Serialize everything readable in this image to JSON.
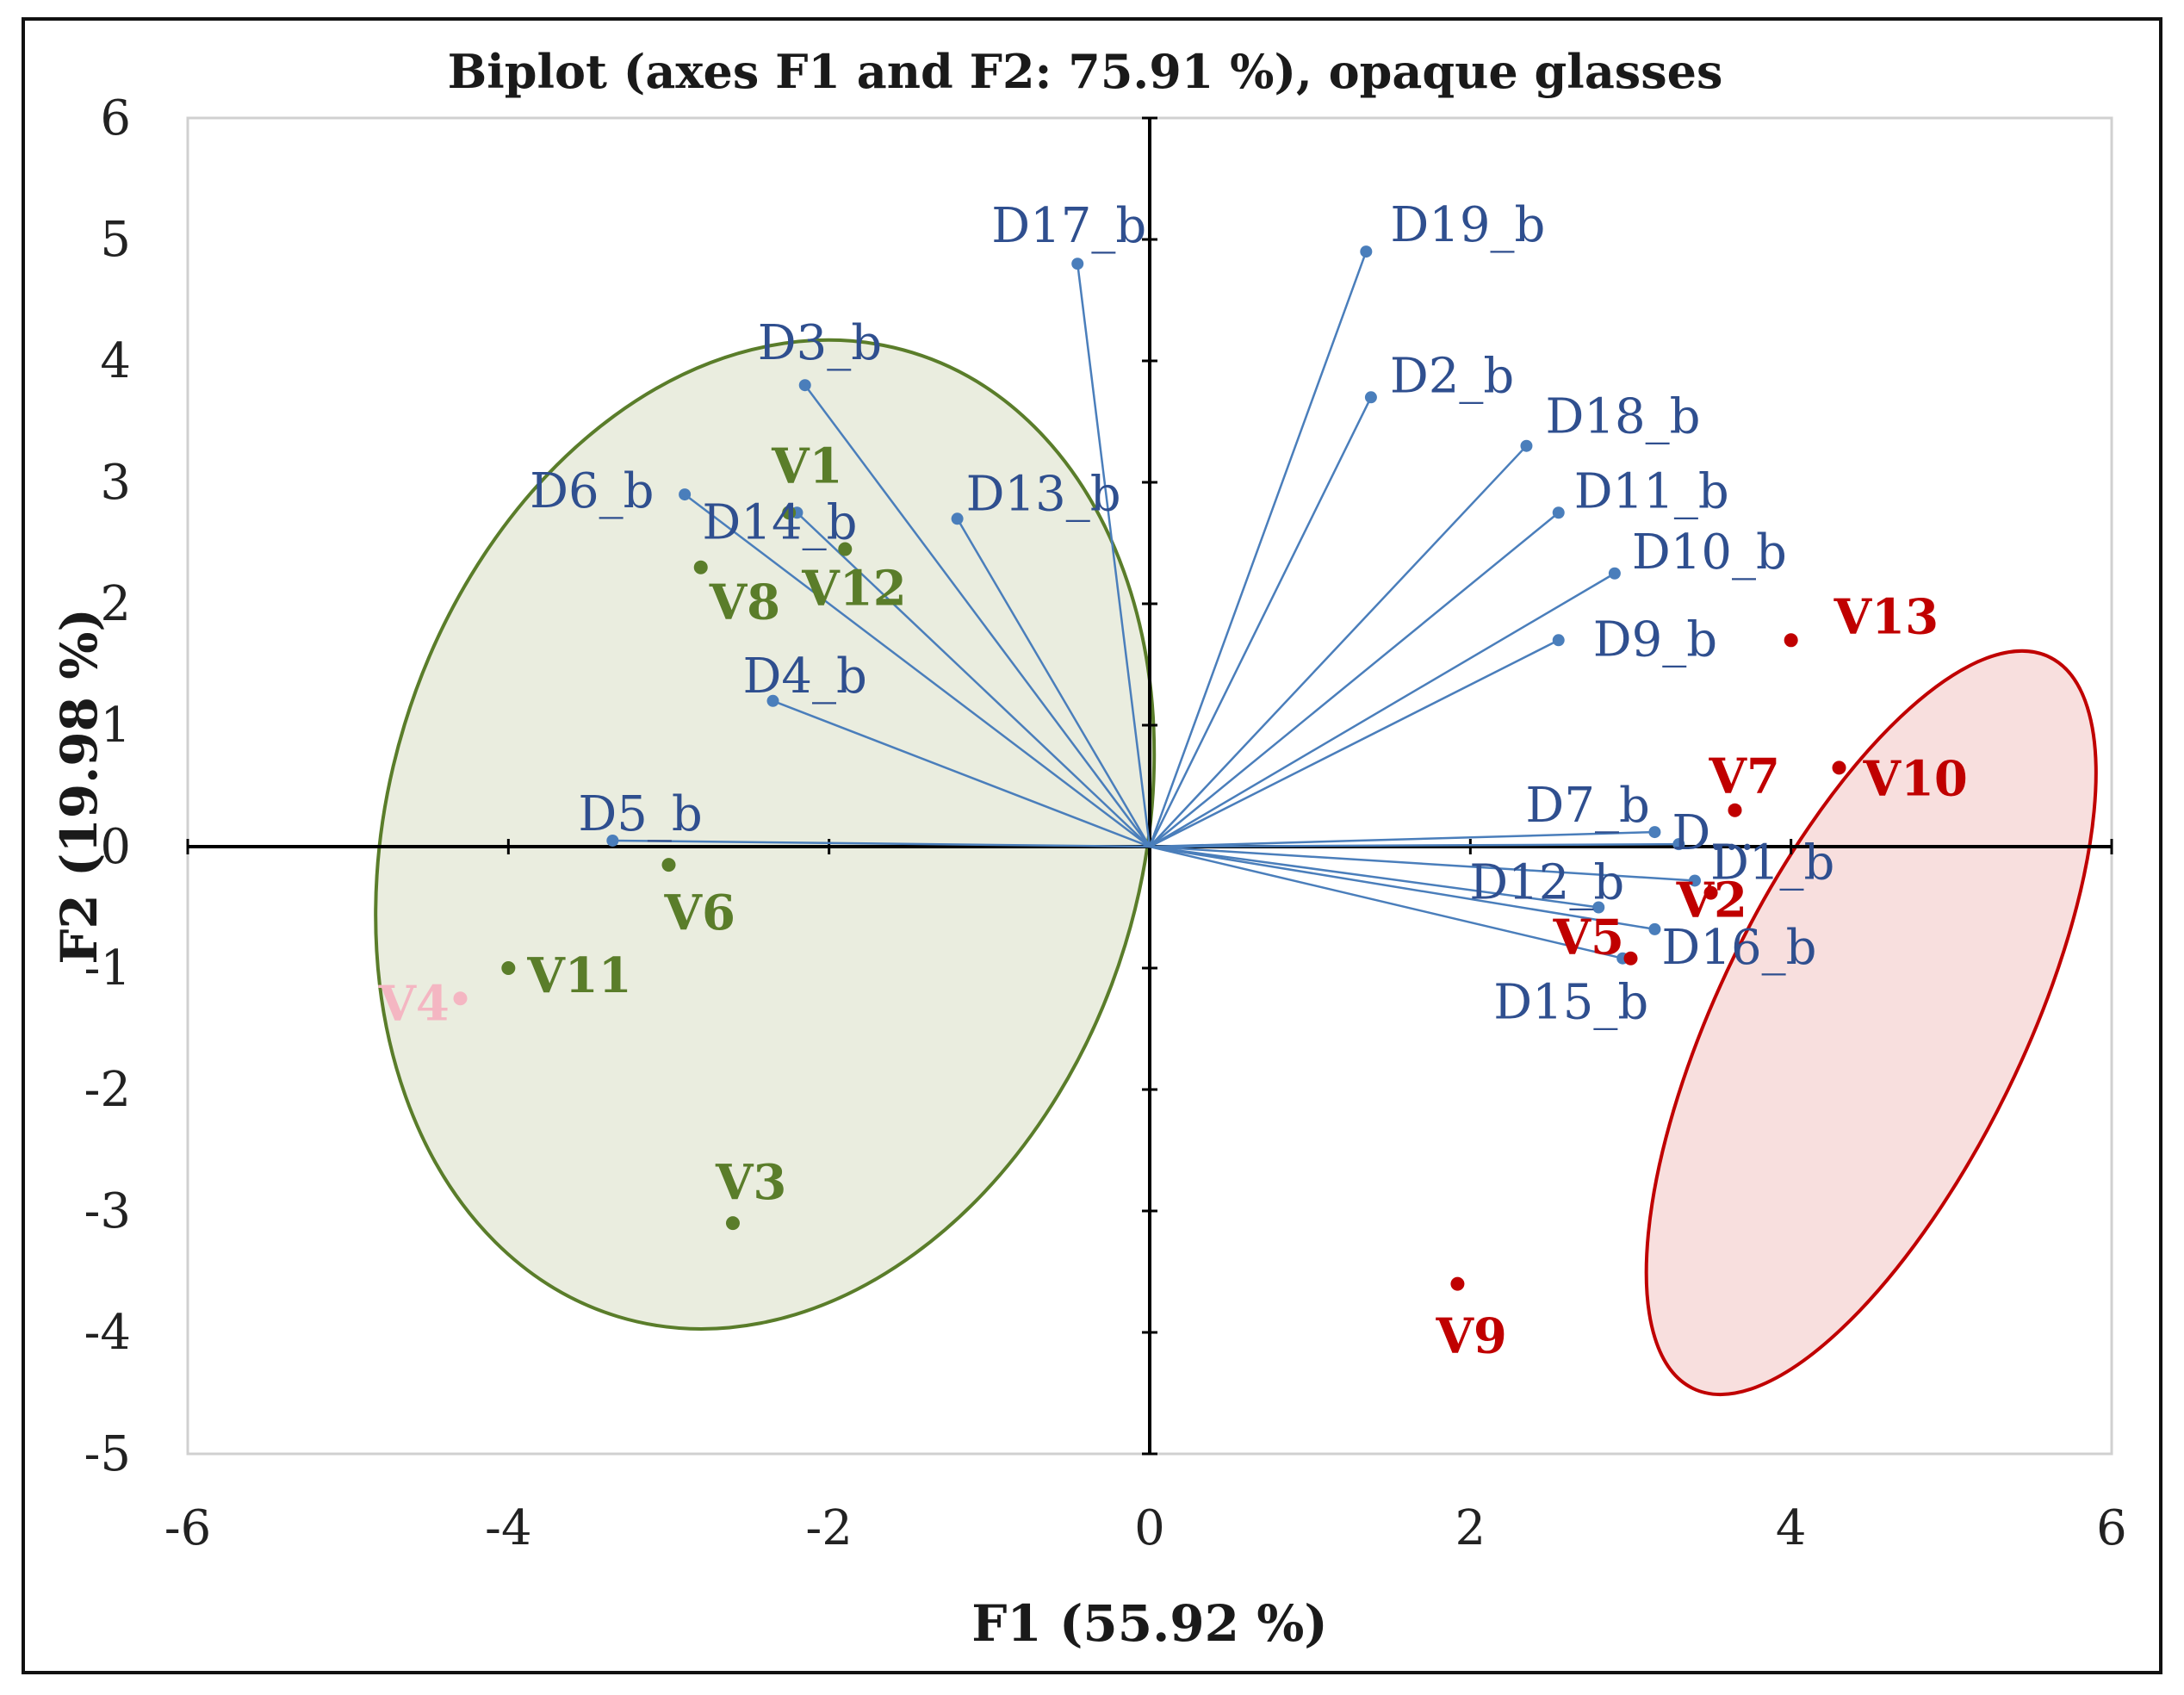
{
  "chart_data": {
    "type": "scatter",
    "title": "Biplot (axes F1 and F2: 75.91 %), opaque glasses",
    "xlabel": "F1 (55.92 %)",
    "ylabel": "F2 (19.98 %)",
    "xlim": [
      -6,
      6
    ],
    "ylim": [
      -5,
      6
    ],
    "xticks": [
      "-6",
      "-4",
      "-2",
      "0",
      "2",
      "4",
      "6"
    ],
    "yticks": [
      "-5",
      "-4",
      "-3",
      "-2",
      "-1",
      "0",
      "1",
      "2",
      "3",
      "4",
      "5",
      "6"
    ],
    "colors": {
      "vector": "#4a7ebb",
      "vector_label": "#2f4f8f",
      "group_green": "#5a7d2a",
      "group_green_fill": "#e6ead9",
      "group_red": "#c00000",
      "group_red_fill": "#f7d9d8",
      "outlier_pink": "#f4b6c2"
    },
    "vectors": [
      {
        "label": "D17_b",
        "x": -0.45,
        "y": 4.8
      },
      {
        "label": "D19_b",
        "x": 1.35,
        "y": 4.9
      },
      {
        "label": "D3_b",
        "x": -2.15,
        "y": 3.8
      },
      {
        "label": "D2_b",
        "x": 1.38,
        "y": 3.7
      },
      {
        "label": "D18_b",
        "x": 2.35,
        "y": 3.3
      },
      {
        "label": "D6_b",
        "x": -2.9,
        "y": 2.9
      },
      {
        "label": "D14_b",
        "x": -2.2,
        "y": 2.75
      },
      {
        "label": "D13_b",
        "x": -1.2,
        "y": 2.7
      },
      {
        "label": "D11_b",
        "x": 2.55,
        "y": 2.75
      },
      {
        "label": "D10_b",
        "x": 2.9,
        "y": 2.25
      },
      {
        "label": "D9_b",
        "x": 2.55,
        "y": 1.7
      },
      {
        "label": "D4_b",
        "x": -2.35,
        "y": 1.2
      },
      {
        "label": "D5_b",
        "x": -3.35,
        "y": 0.05
      },
      {
        "label": "D7_b",
        "x": 3.15,
        "y": 0.12
      },
      {
        "label": "D...",
        "x": 3.3,
        "y": 0.02
      },
      {
        "label": "D1_b",
        "x": 3.4,
        "y": -0.28
      },
      {
        "label": "D12_b",
        "x": 2.8,
        "y": -0.5
      },
      {
        "label": "D16_b",
        "x": 3.15,
        "y": -0.68
      },
      {
        "label": "D15_b",
        "x": 2.95,
        "y": -0.92
      }
    ],
    "observations": [
      {
        "label": "V1",
        "x": -2.25,
        "y": 2.75,
        "group": "green"
      },
      {
        "label": "V12",
        "x": -1.9,
        "y": 2.45,
        "group": "green"
      },
      {
        "label": "V8",
        "x": -2.8,
        "y": 2.3,
        "group": "green"
      },
      {
        "label": "V6",
        "x": -3.0,
        "y": -0.15,
        "group": "green"
      },
      {
        "label": "V11",
        "x": -4.0,
        "y": -1.0,
        "group": "green"
      },
      {
        "label": "V3",
        "x": -2.6,
        "y": -3.1,
        "group": "green"
      },
      {
        "label": "V4",
        "x": -4.3,
        "y": -1.25,
        "group": "pink"
      },
      {
        "label": "V13",
        "x": 4.0,
        "y": 1.7,
        "group": "red"
      },
      {
        "label": "V10",
        "x": 4.3,
        "y": 0.65,
        "group": "red"
      },
      {
        "label": "V7",
        "x": 3.65,
        "y": 0.3,
        "group": "red"
      },
      {
        "label": "V2",
        "x": 3.5,
        "y": -0.38,
        "group": "red"
      },
      {
        "label": "V5",
        "x": 3.0,
        "y": -0.92,
        "group": "red"
      },
      {
        "label": "V9",
        "x": 1.92,
        "y": -3.6,
        "group": "red"
      }
    ],
    "ellipses": [
      {
        "group": "green",
        "cx": -2.4,
        "cy": 0.1,
        "rx": 2.35,
        "ry": 4.15,
        "rotation_deg": 17
      },
      {
        "group": "red",
        "cx": 4.5,
        "cy": -1.45,
        "rx": 0.95,
        "ry": 3.35,
        "rotation_deg": 26
      }
    ],
    "grid": false
  }
}
